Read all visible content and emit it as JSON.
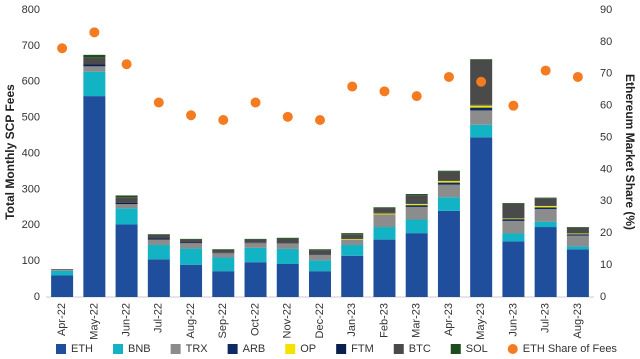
{
  "chart_data": {
    "type": "bar",
    "stacked": true,
    "y_label": "Total Monthly SCP Fees",
    "y2_label": "Ethereum  Market Share (%)",
    "categories": [
      "Apr-22",
      "May-22",
      "Jun-22",
      "Jul-22",
      "Aug-22",
      "Sep-22",
      "Oct-22",
      "Nov-22",
      "Dec-22",
      "Jan-23",
      "Feb-23",
      "Mar-23",
      "Apr-23",
      "May-23",
      "Jun-23",
      "Jul-23",
      "Aug-23"
    ],
    "ylim": [
      0,
      800
    ],
    "yticks": [
      0,
      100,
      200,
      300,
      400,
      500,
      600,
      700,
      800
    ],
    "y2lim": [
      0,
      90
    ],
    "y2ticks": [
      0,
      10,
      20,
      30,
      40,
      50,
      60,
      70,
      80,
      90
    ],
    "grid": false,
    "legend": "bottom",
    "series": [
      {
        "name": "ETH",
        "type": "bar",
        "color": "#1f4e9c",
        "values": [
          60,
          560,
          202,
          105,
          90,
          72,
          97,
          92,
          72,
          115,
          160,
          178,
          240,
          445,
          155,
          195,
          133
        ]
      },
      {
        "name": "BNB",
        "type": "bar",
        "color": "#13b3c6",
        "values": [
          13,
          68,
          45,
          40,
          45,
          38,
          40,
          42,
          30,
          30,
          35,
          38,
          38,
          35,
          22,
          15,
          8
        ]
      },
      {
        "name": "TRX",
        "type": "bar",
        "color": "#8c8c8c",
        "values": [
          3,
          15,
          12,
          15,
          15,
          12,
          13,
          15,
          15,
          15,
          35,
          35,
          35,
          40,
          35,
          35,
          30
        ]
      },
      {
        "name": "ARB",
        "type": "bar",
        "color": "#0d2a66",
        "values": [
          0,
          0,
          0,
          0,
          0,
          0,
          0,
          0,
          0,
          0,
          0,
          5,
          6,
          8,
          5,
          5,
          4
        ]
      },
      {
        "name": "OP",
        "type": "bar",
        "color": "#f2e400",
        "values": [
          0,
          0,
          0,
          0,
          0,
          0,
          0,
          0,
          0,
          2,
          3,
          4,
          5,
          6,
          2,
          4,
          2
        ]
      },
      {
        "name": "FTM",
        "type": "bar",
        "color": "#0a1f4d",
        "values": [
          0,
          5,
          4,
          3,
          2,
          1,
          1,
          1,
          1,
          1,
          2,
          2,
          2,
          2,
          1,
          1,
          1
        ]
      },
      {
        "name": "BTC",
        "type": "bar",
        "color": "#4a4a4a",
        "values": [
          2,
          20,
          15,
          10,
          8,
          8,
          9,
          12,
          12,
          12,
          13,
          22,
          23,
          125,
          40,
          20,
          15
        ]
      },
      {
        "name": "SOL",
        "type": "bar",
        "color": "#1d4d1d",
        "values": [
          0,
          7,
          5,
          2,
          2,
          2,
          2,
          3,
          3,
          3,
          2,
          3,
          3,
          2,
          2,
          2,
          2
        ]
      },
      {
        "name": "ETH Share of Fees",
        "type": "scatter",
        "axis": "y2",
        "color": "#f47b20",
        "values": [
          78,
          83,
          73,
          61,
          57,
          55.5,
          61,
          56.5,
          55.5,
          66,
          64.5,
          63,
          69,
          67.5,
          60,
          71,
          69
        ]
      }
    ]
  }
}
